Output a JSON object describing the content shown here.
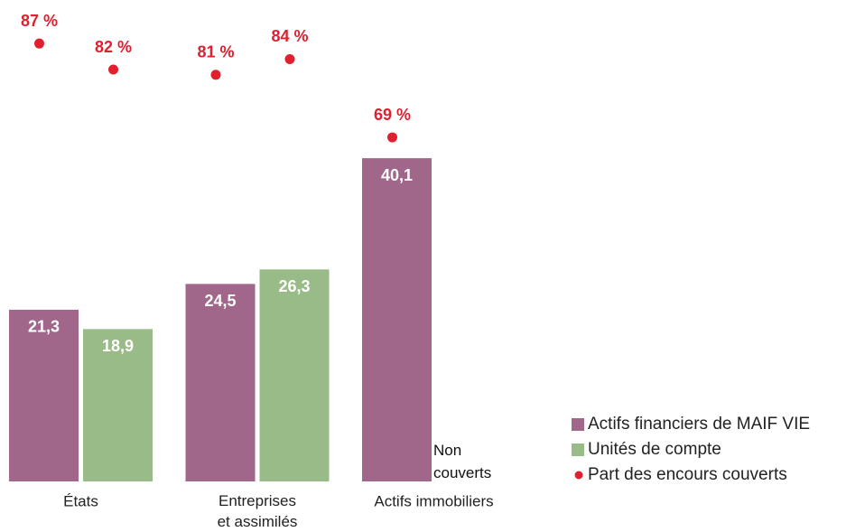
{
  "chart_data": {
    "type": "bar",
    "categories": [
      "États",
      "Entreprises\net assimilés",
      "Actifs immobiliers"
    ],
    "series": [
      {
        "name": "Actifs financiers de MAIF VIE",
        "color": "#a0678a",
        "values": [
          21.3,
          24.5,
          40.1
        ],
        "value_labels": [
          "21,3",
          "24,5",
          "40,1"
        ]
      },
      {
        "name": "Unités de compte",
        "color": "#98bb87",
        "values": [
          18.9,
          26.3,
          null
        ],
        "value_labels": [
          "18,9",
          "26,3",
          null
        ]
      },
      {
        "name": "Part des encours couverts",
        "type": "scatter",
        "axis": "y2",
        "color": "#e0202e",
        "values": [
          [
            87,
            82
          ],
          [
            81,
            84
          ],
          [
            69,
            null
          ]
        ],
        "value_labels": [
          [
            "87 %",
            "82 %"
          ],
          [
            "81 %",
            "84 %"
          ],
          [
            "69 %",
            null
          ]
        ]
      }
    ],
    "annotation": "Non\ncouverts",
    "ylim": [
      0,
      59.5
    ],
    "y2lim": [
      3,
      95
    ],
    "legend": "bottom-right"
  }
}
